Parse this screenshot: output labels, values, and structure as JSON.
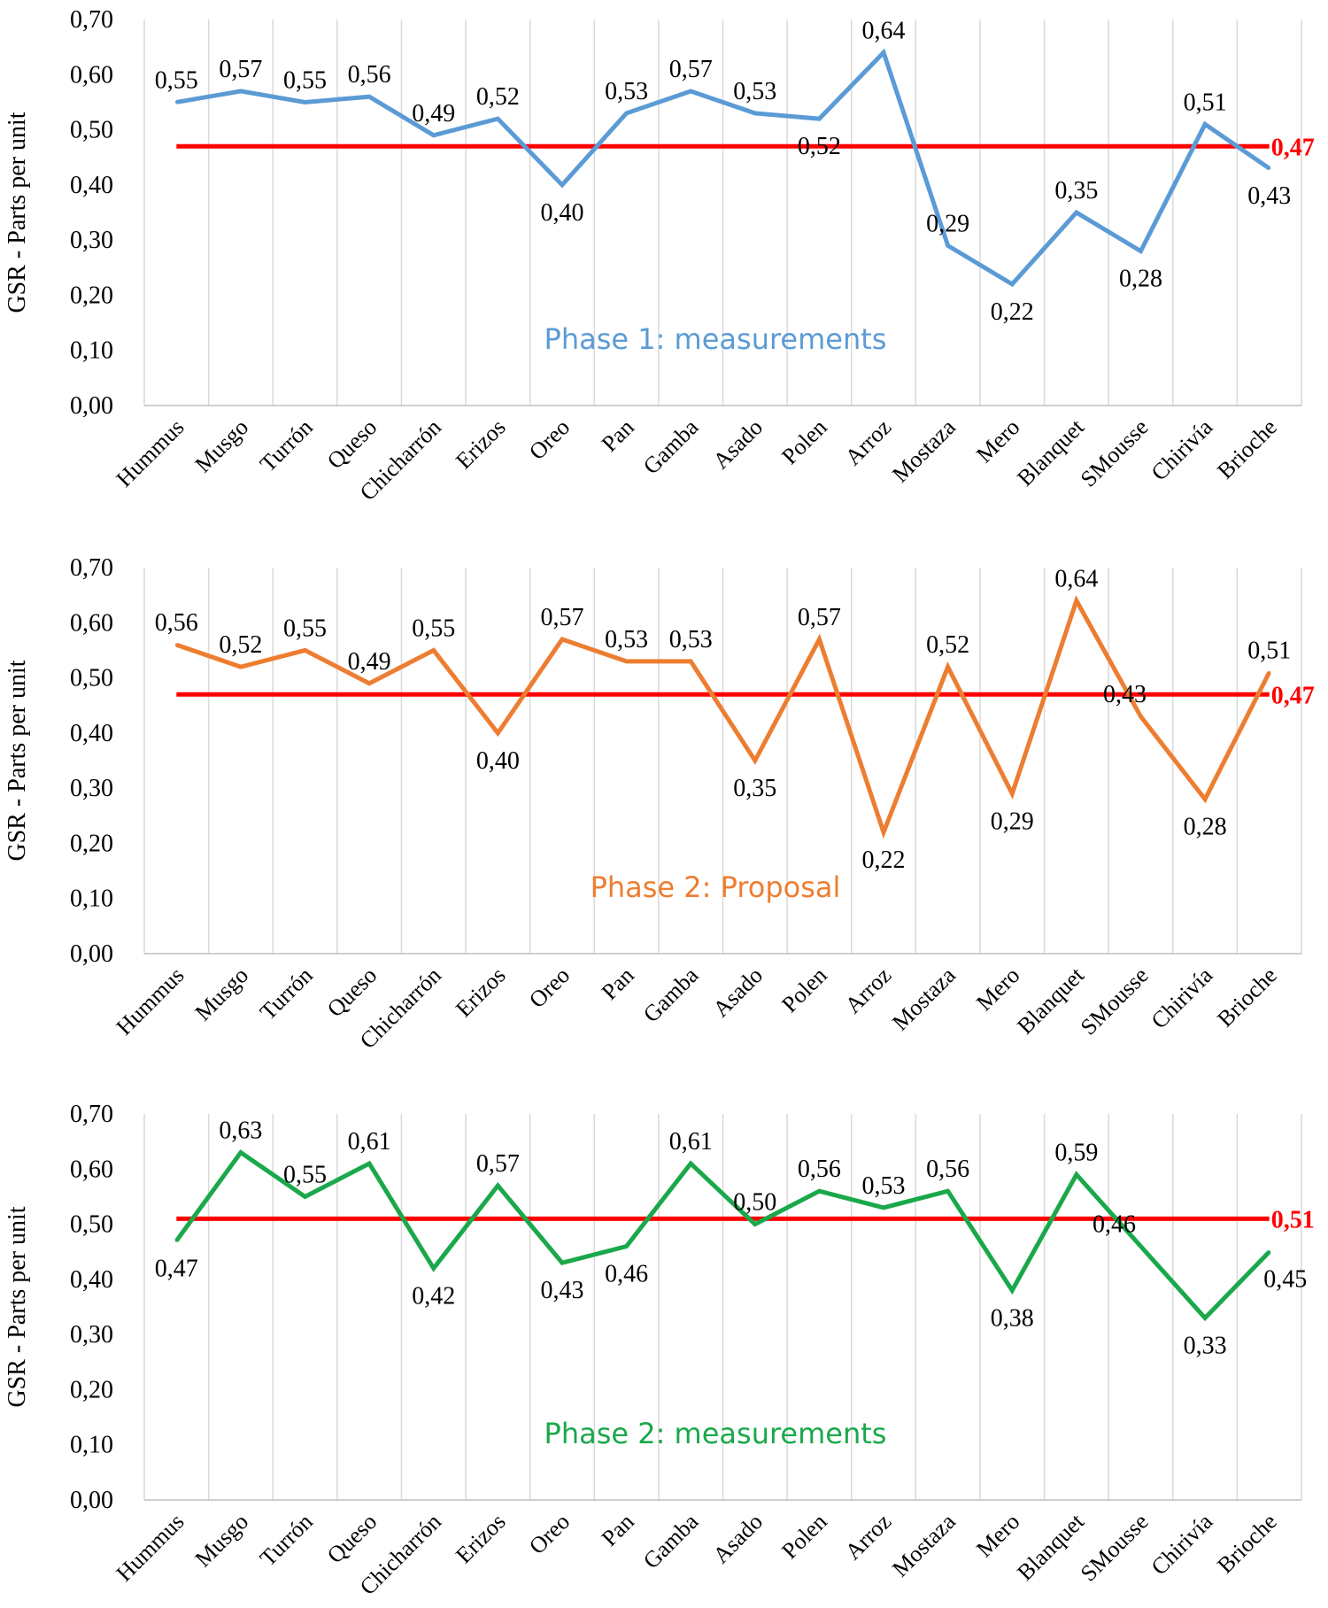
{
  "chart_data": [
    {
      "type": "line",
      "id": "chart-phase1",
      "annotation": "Phase 1:  measurements",
      "ylabel": "GSR - Parts per unit",
      "ylim": [
        0,
        0.7
      ],
      "yticks": [
        "0,00",
        "0,10",
        "0,20",
        "0,30",
        "0,40",
        "0,50",
        "0,60",
        "0,70"
      ],
      "grid": "vertical",
      "categories": [
        "Hummus",
        "Musgo",
        "Turrón",
        "Queso",
        "Chicharrón",
        "Erizos",
        "Oreo",
        "Pan",
        "Gamba",
        "Asado",
        "Polen",
        "Arroz",
        "Mostaza",
        "Mero",
        "Blanquet",
        "SMousse",
        "Chirivía",
        "Brioche"
      ],
      "series": [
        {
          "name": "Phase 1: measurements",
          "color": "#5b9bd5",
          "values": [
            0.55,
            0.57,
            0.55,
            0.56,
            0.49,
            0.52,
            0.4,
            0.53,
            0.57,
            0.53,
            0.52,
            0.64,
            0.29,
            0.22,
            0.35,
            0.28,
            0.51,
            0.43
          ],
          "labels": [
            "0,55",
            "0,57",
            "0,55",
            "0,56",
            "0,49",
            "0,52",
            "0,40",
            "0,53",
            "0,57",
            "0,53",
            "0,52",
            "0,64",
            "0,29",
            "0,22",
            "0,35",
            "0,28",
            "0,51",
            "0,43"
          ]
        }
      ],
      "reference": {
        "value": 0.47,
        "label": "0,47",
        "color": "#ff0000"
      }
    },
    {
      "type": "line",
      "id": "chart-phase2-proposal",
      "annotation": "Phase 2:  Proposal",
      "ylabel": "GSR - Parts per unit",
      "ylim": [
        0,
        0.7
      ],
      "yticks": [
        "0,00",
        "0,10",
        "0,20",
        "0,30",
        "0,40",
        "0,50",
        "0,60",
        "0,70"
      ],
      "grid": "vertical",
      "categories": [
        "Hummus",
        "Musgo",
        "Turrón",
        "Queso",
        "Chicharrón",
        "Erizos",
        "Oreo",
        "Pan",
        "Gamba",
        "Asado",
        "Polen",
        "Arroz",
        "Mostaza",
        "Mero",
        "Blanquet",
        "SMousse",
        "Chirivía",
        "Brioche"
      ],
      "series": [
        {
          "name": "Phase 2: Proposal",
          "color": "#ed7d31",
          "values": [
            0.56,
            0.52,
            0.55,
            0.49,
            0.55,
            0.4,
            0.57,
            0.53,
            0.53,
            0.35,
            0.57,
            0.22,
            0.52,
            0.29,
            0.64,
            0.43,
            0.28,
            0.51
          ],
          "labels": [
            "0,56",
            "0,52",
            "0,55",
            "0,49",
            "0,55",
            "0,40",
            "0,57",
            "0,53",
            "0,53",
            "0,35",
            "0,57",
            "0,22",
            "0,52",
            "0,29",
            "0,64",
            "0,43",
            "0,28",
            "0,51"
          ]
        }
      ],
      "reference": {
        "value": 0.47,
        "label": "0,47",
        "color": "#ff0000"
      }
    },
    {
      "type": "line",
      "id": "chart-phase2-measurements",
      "annotation": "Phase 2:  measurements",
      "ylabel": "GSR - Parts per unit",
      "ylim": [
        0,
        0.7
      ],
      "yticks": [
        "0,00",
        "0,10",
        "0,20",
        "0,30",
        "0,40",
        "0,50",
        "0,60",
        "0,70"
      ],
      "grid": "vertical",
      "categories": [
        "Hummus",
        "Musgo",
        "Turrón",
        "Queso",
        "Chicharrón",
        "Erizos",
        "Oreo",
        "Pan",
        "Gamba",
        "Asado",
        "Polen",
        "Arroz",
        "Mostaza",
        "Mero",
        "Blanquet",
        "SMousse",
        "Chirivía",
        "Brioche"
      ],
      "series": [
        {
          "name": "Phase 2: measurements",
          "color": "#1aa84a",
          "values": [
            0.47,
            0.63,
            0.55,
            0.61,
            0.42,
            0.57,
            0.43,
            0.46,
            0.61,
            0.5,
            0.56,
            0.53,
            0.56,
            0.38,
            0.59,
            0.46,
            0.33,
            0.45
          ],
          "labels": [
            "0,47",
            "0,63",
            "0,55",
            "0,61",
            "0,42",
            "0,57",
            "0,43",
            "0,46",
            "0,61",
            "0,50",
            "0,56",
            "0,53",
            "0,56",
            "0,38",
            "0,59",
            "0,46",
            "0,33",
            "0,45"
          ]
        }
      ],
      "reference": {
        "value": 0.51,
        "label": "0,51",
        "color": "#ff0000"
      }
    }
  ]
}
